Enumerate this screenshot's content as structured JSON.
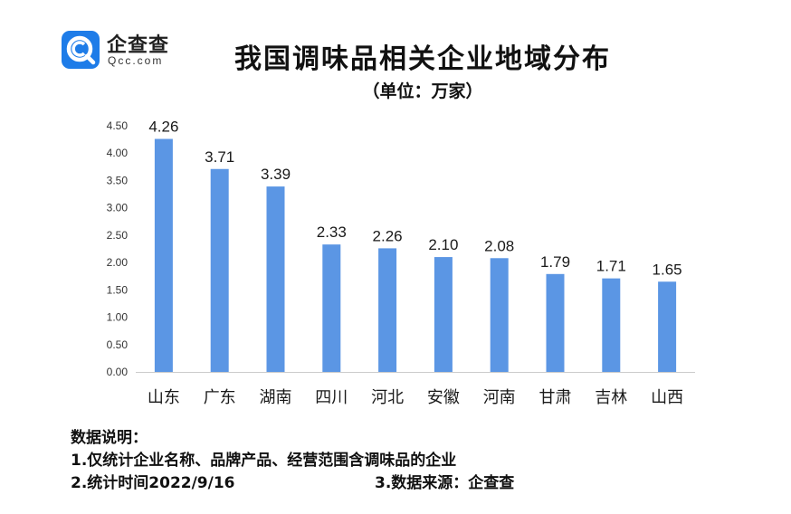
{
  "logo": {
    "name": "企查查",
    "url": "Qcc.com",
    "icon": "qcc-magnifier-logo-icon",
    "color": "#1e7ce8"
  },
  "title": "我国调味品相关企业地域分布",
  "subtitle": "（单位：万家）",
  "chart_data": {
    "type": "bar",
    "title": "我国调味品相关企业地域分布",
    "unit": "（单位：万家）",
    "categories": [
      "山东",
      "广东",
      "湖南",
      "四川",
      "河北",
      "安徽",
      "河南",
      "甘肃",
      "吉林",
      "山西"
    ],
    "values": [
      4.26,
      3.71,
      3.39,
      2.33,
      2.26,
      2.1,
      2.08,
      1.79,
      1.71,
      1.65
    ],
    "value_labels": [
      "4.26",
      "3.71",
      "3.39",
      "2.33",
      "2.26",
      "2.10",
      "2.08",
      "1.79",
      "1.71",
      "1.65"
    ],
    "yticks": [
      "0.00",
      "0.50",
      "1.00",
      "1.50",
      "2.00",
      "2.50",
      "3.00",
      "3.50",
      "4.00",
      "4.50"
    ],
    "ylim": [
      0,
      4.5
    ],
    "grid": false,
    "legend": "none",
    "bar_color": "#5b96e4"
  },
  "notes": {
    "heading": "数据说明：",
    "line1": "1.仅统计企业名称、品牌产品、经营范围含调味品的企业",
    "line2": "2.统计时间2022/9/16",
    "line3": "3.数据来源：企查查"
  }
}
